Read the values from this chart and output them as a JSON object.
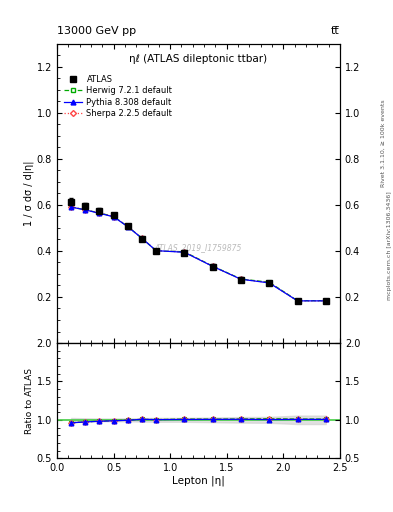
{
  "title_top": "13000 GeV pp",
  "title_top_right": "tt̅",
  "plot_title": "ηℓ (ATLAS dileptonic ttbar)",
  "xlabel": "Lepton |η|",
  "ylabel_main": "1 / σ dσ / d|η|",
  "ylabel_ratio": "Ratio to ATLAS",
  "right_label_top": "Rivet 3.1.10, ≥ 100k events",
  "right_label_bot": "mcplots.cern.ch [arXiv:1306.3436]",
  "watermark": "ATLAS_2019_I1759875",
  "atlas_x": [
    0.125,
    0.25,
    0.375,
    0.5,
    0.625,
    0.75,
    0.875,
    1.125,
    1.375,
    1.625,
    1.875,
    2.125,
    2.375
  ],
  "atlas_y": [
    0.614,
    0.594,
    0.574,
    0.555,
    0.508,
    0.452,
    0.4,
    0.392,
    0.331,
    0.275,
    0.26,
    0.182,
    0.182
  ],
  "atlas_yerr": [
    0.015,
    0.012,
    0.01,
    0.01,
    0.01,
    0.01,
    0.01,
    0.01,
    0.01,
    0.01,
    0.01,
    0.01,
    0.01
  ],
  "herwig_x": [
    0.125,
    0.25,
    0.375,
    0.5,
    0.625,
    0.75,
    0.875,
    1.125,
    1.375,
    1.625,
    1.875,
    2.125,
    2.375
  ],
  "herwig_y": [
    0.591,
    0.578,
    0.565,
    0.549,
    0.506,
    0.455,
    0.401,
    0.396,
    0.334,
    0.278,
    0.264,
    0.184,
    0.184
  ],
  "pythia_x": [
    0.125,
    0.25,
    0.375,
    0.5,
    0.625,
    0.75,
    0.875,
    1.125,
    1.375,
    1.625,
    1.875,
    2.125,
    2.375
  ],
  "pythia_y": [
    0.59,
    0.578,
    0.563,
    0.548,
    0.505,
    0.455,
    0.401,
    0.394,
    0.333,
    0.277,
    0.261,
    0.183,
    0.183
  ],
  "sherpa_x": [
    0.125,
    0.25,
    0.375,
    0.5,
    0.625,
    0.75,
    0.875,
    1.125,
    1.375,
    1.625,
    1.875,
    2.125,
    2.375
  ],
  "sherpa_y": [
    0.591,
    0.578,
    0.564,
    0.549,
    0.506,
    0.455,
    0.401,
    0.395,
    0.333,
    0.277,
    0.262,
    0.183,
    0.183
  ],
  "herwig_ratio": [
    0.962,
    0.973,
    0.984,
    0.989,
    0.996,
    1.007,
    1.003,
    1.01,
    1.009,
    1.011,
    1.015,
    1.011,
    1.011
  ],
  "pythia_ratio": [
    0.96,
    0.973,
    0.981,
    0.988,
    0.994,
    1.007,
    1.003,
    1.005,
    1.006,
    1.007,
    1.004,
    1.006,
    1.006
  ],
  "sherpa_ratio": [
    0.962,
    0.973,
    0.983,
    0.99,
    0.996,
    1.007,
    1.003,
    1.008,
    1.006,
    1.007,
    1.008,
    1.006,
    1.006
  ],
  "xlim": [
    0.0,
    2.5
  ],
  "ylim_main": [
    0.0,
    1.3
  ],
  "ylim_ratio": [
    0.5,
    2.0
  ],
  "yticks_main": [
    0.2,
    0.4,
    0.6,
    0.8,
    1.0,
    1.2
  ],
  "yticks_ratio": [
    0.5,
    1.0,
    1.5,
    2.0
  ],
  "xticks": [
    0.0,
    0.5,
    1.0,
    1.5,
    2.0,
    2.5
  ],
  "atlas_color": "#000000",
  "herwig_color": "#00aa00",
  "pythia_color": "#0000ff",
  "sherpa_color": "#ff4444",
  "ref_line_color": "#44cc44",
  "bg_color": "#ffffff",
  "watermark_color": "#bbbbbb"
}
